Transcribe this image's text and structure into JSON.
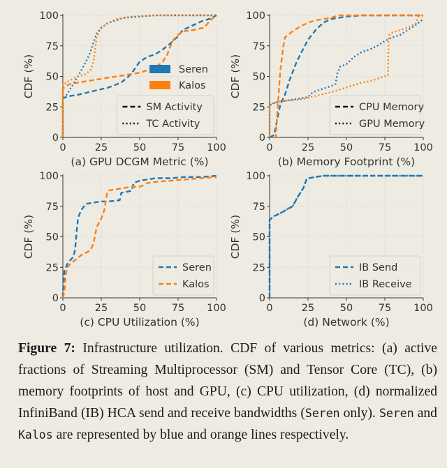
{
  "colors": {
    "seren": "#1f77b4",
    "kalos": "#ff7f0e",
    "background": "#eeebe3",
    "grid": "#cfcfcf",
    "axis": "#333333"
  },
  "chart_data": [
    {
      "type": "line",
      "id": "a",
      "xlabel": "(a) GPU DCGM Metric (%)",
      "ylabel": "CDF (%)",
      "xlim": [
        0,
        100
      ],
      "ylim": [
        0,
        100
      ],
      "xticks": [
        "0",
        "25",
        "50",
        "75",
        "100"
      ],
      "yticks": [
        "0",
        "25",
        "50",
        "75",
        "100"
      ],
      "grid": true,
      "legend": {
        "placement": "bottom-right",
        "entries": [
          {
            "label": "Seren",
            "kind": "patch",
            "color": "seren"
          },
          {
            "label": "Kalos",
            "kind": "patch",
            "color": "kalos"
          },
          {
            "label": "SM Activity",
            "kind": "dashed",
            "color": "black",
            "boxed": true
          },
          {
            "label": "TC Activity",
            "kind": "dotted",
            "color": "black",
            "boxed": true
          }
        ]
      },
      "series": [
        {
          "name": "Seren SM Activity",
          "color": "seren",
          "style": "dashed",
          "x": [
            0,
            0,
            2,
            5,
            10,
            20,
            30,
            38,
            42,
            45,
            50,
            55,
            60,
            65,
            70,
            75,
            78,
            85,
            90,
            95,
            100
          ],
          "y": [
            0,
            32,
            33,
            34,
            35,
            38,
            41,
            45,
            49,
            53,
            62,
            66,
            68,
            72,
            77,
            83,
            88,
            92,
            95,
            97,
            100
          ]
        },
        {
          "name": "Kalos SM Activity",
          "color": "kalos",
          "style": "dashed",
          "x": [
            0,
            0,
            2,
            5,
            10,
            20,
            30,
            40,
            50,
            55,
            60,
            65,
            68,
            70,
            72,
            75,
            78,
            85,
            92,
            96,
            100
          ],
          "y": [
            0,
            40,
            42,
            44,
            45,
            47,
            49,
            51,
            53,
            55,
            57,
            62,
            68,
            75,
            80,
            84,
            87,
            88,
            90,
            96,
            100
          ]
        },
        {
          "name": "Seren TC Activity",
          "color": "seren",
          "style": "dotted",
          "x": [
            0,
            0,
            2,
            5,
            8,
            12,
            15,
            18,
            20,
            22,
            25,
            30,
            40,
            50,
            60,
            100
          ],
          "y": [
            0,
            32,
            34,
            40,
            46,
            55,
            62,
            70,
            78,
            85,
            90,
            94,
            98,
            99,
            100,
            100
          ]
        },
        {
          "name": "Kalos TC Activity",
          "color": "kalos",
          "style": "dotted",
          "x": [
            0,
            0,
            2,
            5,
            10,
            15,
            18,
            20,
            21,
            22,
            24,
            28,
            35,
            45,
            60,
            100
          ],
          "y": [
            0,
            42,
            45,
            47,
            50,
            52,
            55,
            62,
            72,
            82,
            88,
            93,
            97,
            99,
            100,
            100
          ]
        }
      ]
    },
    {
      "type": "line",
      "id": "b",
      "xlabel": "(b) Memory Footprint (%)",
      "ylabel": "CDF (%)",
      "xlim": [
        0,
        100
      ],
      "ylim": [
        0,
        100
      ],
      "xticks": [
        "0",
        "25",
        "50",
        "75",
        "100"
      ],
      "yticks": [
        "0",
        "25",
        "50",
        "75",
        "100"
      ],
      "grid": true,
      "legend": {
        "placement": "bottom-right",
        "entries": [
          {
            "label": "CPU Memory",
            "kind": "dashed",
            "color": "black"
          },
          {
            "label": "GPU Memory",
            "kind": "dotted",
            "color": "black"
          }
        ]
      },
      "series": [
        {
          "name": "Seren CPU Memory",
          "color": "seren",
          "style": "dashed",
          "x": [
            0,
            3,
            5,
            7,
            10,
            13,
            17,
            20,
            25,
            30,
            35,
            40,
            45,
            50,
            60,
            70,
            100
          ],
          "y": [
            0,
            2,
            15,
            27,
            35,
            47,
            60,
            68,
            80,
            88,
            94,
            97,
            98,
            99,
            100,
            100,
            100
          ]
        },
        {
          "name": "Kalos CPU Memory",
          "color": "kalos",
          "style": "dashed",
          "x": [
            3,
            4,
            5,
            7,
            9,
            10,
            12,
            15,
            20,
            25,
            30,
            40,
            45,
            50,
            100
          ],
          "y": [
            0,
            0,
            20,
            55,
            75,
            82,
            84,
            87,
            91,
            94,
            96,
            98,
            100,
            100,
            100
          ]
        },
        {
          "name": "Seren GPU Memory",
          "color": "seren",
          "style": "dotted",
          "x": [
            0,
            0,
            1,
            3,
            5,
            10,
            15,
            20,
            25,
            28,
            35,
            40,
            43,
            44,
            46,
            50,
            55,
            60,
            65,
            70,
            75,
            80,
            85,
            90,
            95,
            100
          ],
          "y": [
            0,
            26,
            27,
            28,
            29,
            30,
            31,
            32,
            33,
            37,
            40,
            42,
            44,
            52,
            58,
            60,
            66,
            70,
            72,
            75,
            79,
            82,
            84,
            88,
            92,
            97
          ]
        },
        {
          "name": "Kalos GPU Memory",
          "color": "kalos",
          "style": "dotted",
          "x": [
            0,
            0,
            2,
            5,
            10,
            20,
            30,
            40,
            50,
            55,
            60,
            65,
            70,
            75,
            77,
            77.5,
            78,
            80,
            85,
            90,
            95,
            97,
            100
          ],
          "y": [
            0,
            28,
            28,
            29,
            30,
            31,
            34,
            37,
            41,
            43,
            45,
            46,
            48,
            50,
            51,
            82,
            84,
            86,
            88,
            90,
            93,
            99,
            100
          ]
        }
      ]
    },
    {
      "type": "line",
      "id": "c",
      "xlabel": "(c) CPU Utilization (%)",
      "ylabel": "CDF (%)",
      "xlim": [
        0,
        100
      ],
      "ylim": [
        0,
        100
      ],
      "xticks": [
        "0",
        "25",
        "50",
        "75",
        "100"
      ],
      "yticks": [
        "0",
        "25",
        "50",
        "75",
        "100"
      ],
      "grid": true,
      "legend": {
        "placement": "bottom-right",
        "entries": [
          {
            "label": "Seren",
            "kind": "dashed",
            "color": "seren"
          },
          {
            "label": "Kalos",
            "kind": "dashed",
            "color": "kalos"
          }
        ]
      },
      "series": [
        {
          "name": "Seren",
          "color": "seren",
          "style": "dashed",
          "x": [
            0,
            0,
            1,
            3,
            5,
            7,
            8,
            9,
            10,
            12,
            15,
            20,
            25,
            30,
            37,
            38,
            42,
            45,
            46,
            50,
            55,
            60,
            70,
            80,
            90,
            100
          ],
          "y": [
            0,
            5,
            22,
            28,
            31,
            34,
            40,
            55,
            66,
            72,
            77,
            78,
            79,
            79,
            80,
            86,
            87,
            88,
            94,
            96,
            97,
            98,
            98,
            99,
            99,
            100
          ]
        },
        {
          "name": "Kalos",
          "color": "kalos",
          "style": "dashed",
          "x": [
            0,
            1,
            2,
            3,
            5,
            8,
            12,
            18,
            20,
            22,
            25,
            27,
            28,
            29,
            30,
            35,
            40,
            45,
            50,
            52,
            55,
            60,
            70,
            80,
            90,
            100
          ],
          "y": [
            0,
            5,
            20,
            25,
            28,
            31,
            35,
            39,
            45,
            58,
            65,
            72,
            80,
            87,
            88,
            89,
            90,
            91,
            91,
            92,
            94,
            95,
            96,
            97,
            98,
            99
          ]
        }
      ]
    },
    {
      "type": "line",
      "id": "d",
      "xlabel": "(d) Network (%)",
      "ylabel": "CDF (%)",
      "xlim": [
        0,
        100
      ],
      "ylim": [
        0,
        100
      ],
      "xticks": [
        "0",
        "25",
        "50",
        "75",
        "100"
      ],
      "yticks": [
        "0",
        "25",
        "50",
        "75",
        "100"
      ],
      "grid": true,
      "legend": {
        "placement": "bottom-right",
        "entries": [
          {
            "label": "IB Send",
            "kind": "dashed",
            "color": "seren"
          },
          {
            "label": "IB Receive",
            "kind": "dotted",
            "color": "seren"
          }
        ]
      },
      "series": [
        {
          "name": "IB Send",
          "color": "seren",
          "style": "dashed",
          "x": [
            0,
            0,
            0,
            3,
            8,
            12,
            15,
            18,
            22,
            24,
            25,
            30,
            35,
            50,
            100
          ],
          "y": [
            0,
            40,
            64,
            67,
            70,
            73,
            75,
            82,
            90,
            97,
            98,
            99,
            100,
            100,
            100
          ]
        },
        {
          "name": "IB Receive",
          "color": "seren",
          "style": "dotted",
          "x": [
            0,
            0,
            0,
            3,
            8,
            12,
            15,
            18,
            22,
            24,
            25,
            30,
            35,
            50,
            100
          ],
          "y": [
            0,
            40,
            64,
            67,
            70,
            73,
            75,
            82,
            90,
            97,
            98,
            99,
            100,
            100,
            100
          ]
        }
      ]
    }
  ],
  "caption": {
    "label": "Figure 7:",
    "s1": " Infrastructure utilization. CDF of various metrics: (a) active fractions of Streaming Multiprocessor (SM) and Tensor Core (TC), (b) memory footprints of host and GPU, (c) CPU utilization, (d) normalized InfiniBand (IB) HCA send and receive bandwidths (",
    "code1": "Seren",
    "s2": " only). ",
    "code2": "Seren",
    "s3": " and ",
    "code3": "Kalos",
    "s4": " are represented by blue and orange lines respectively."
  }
}
